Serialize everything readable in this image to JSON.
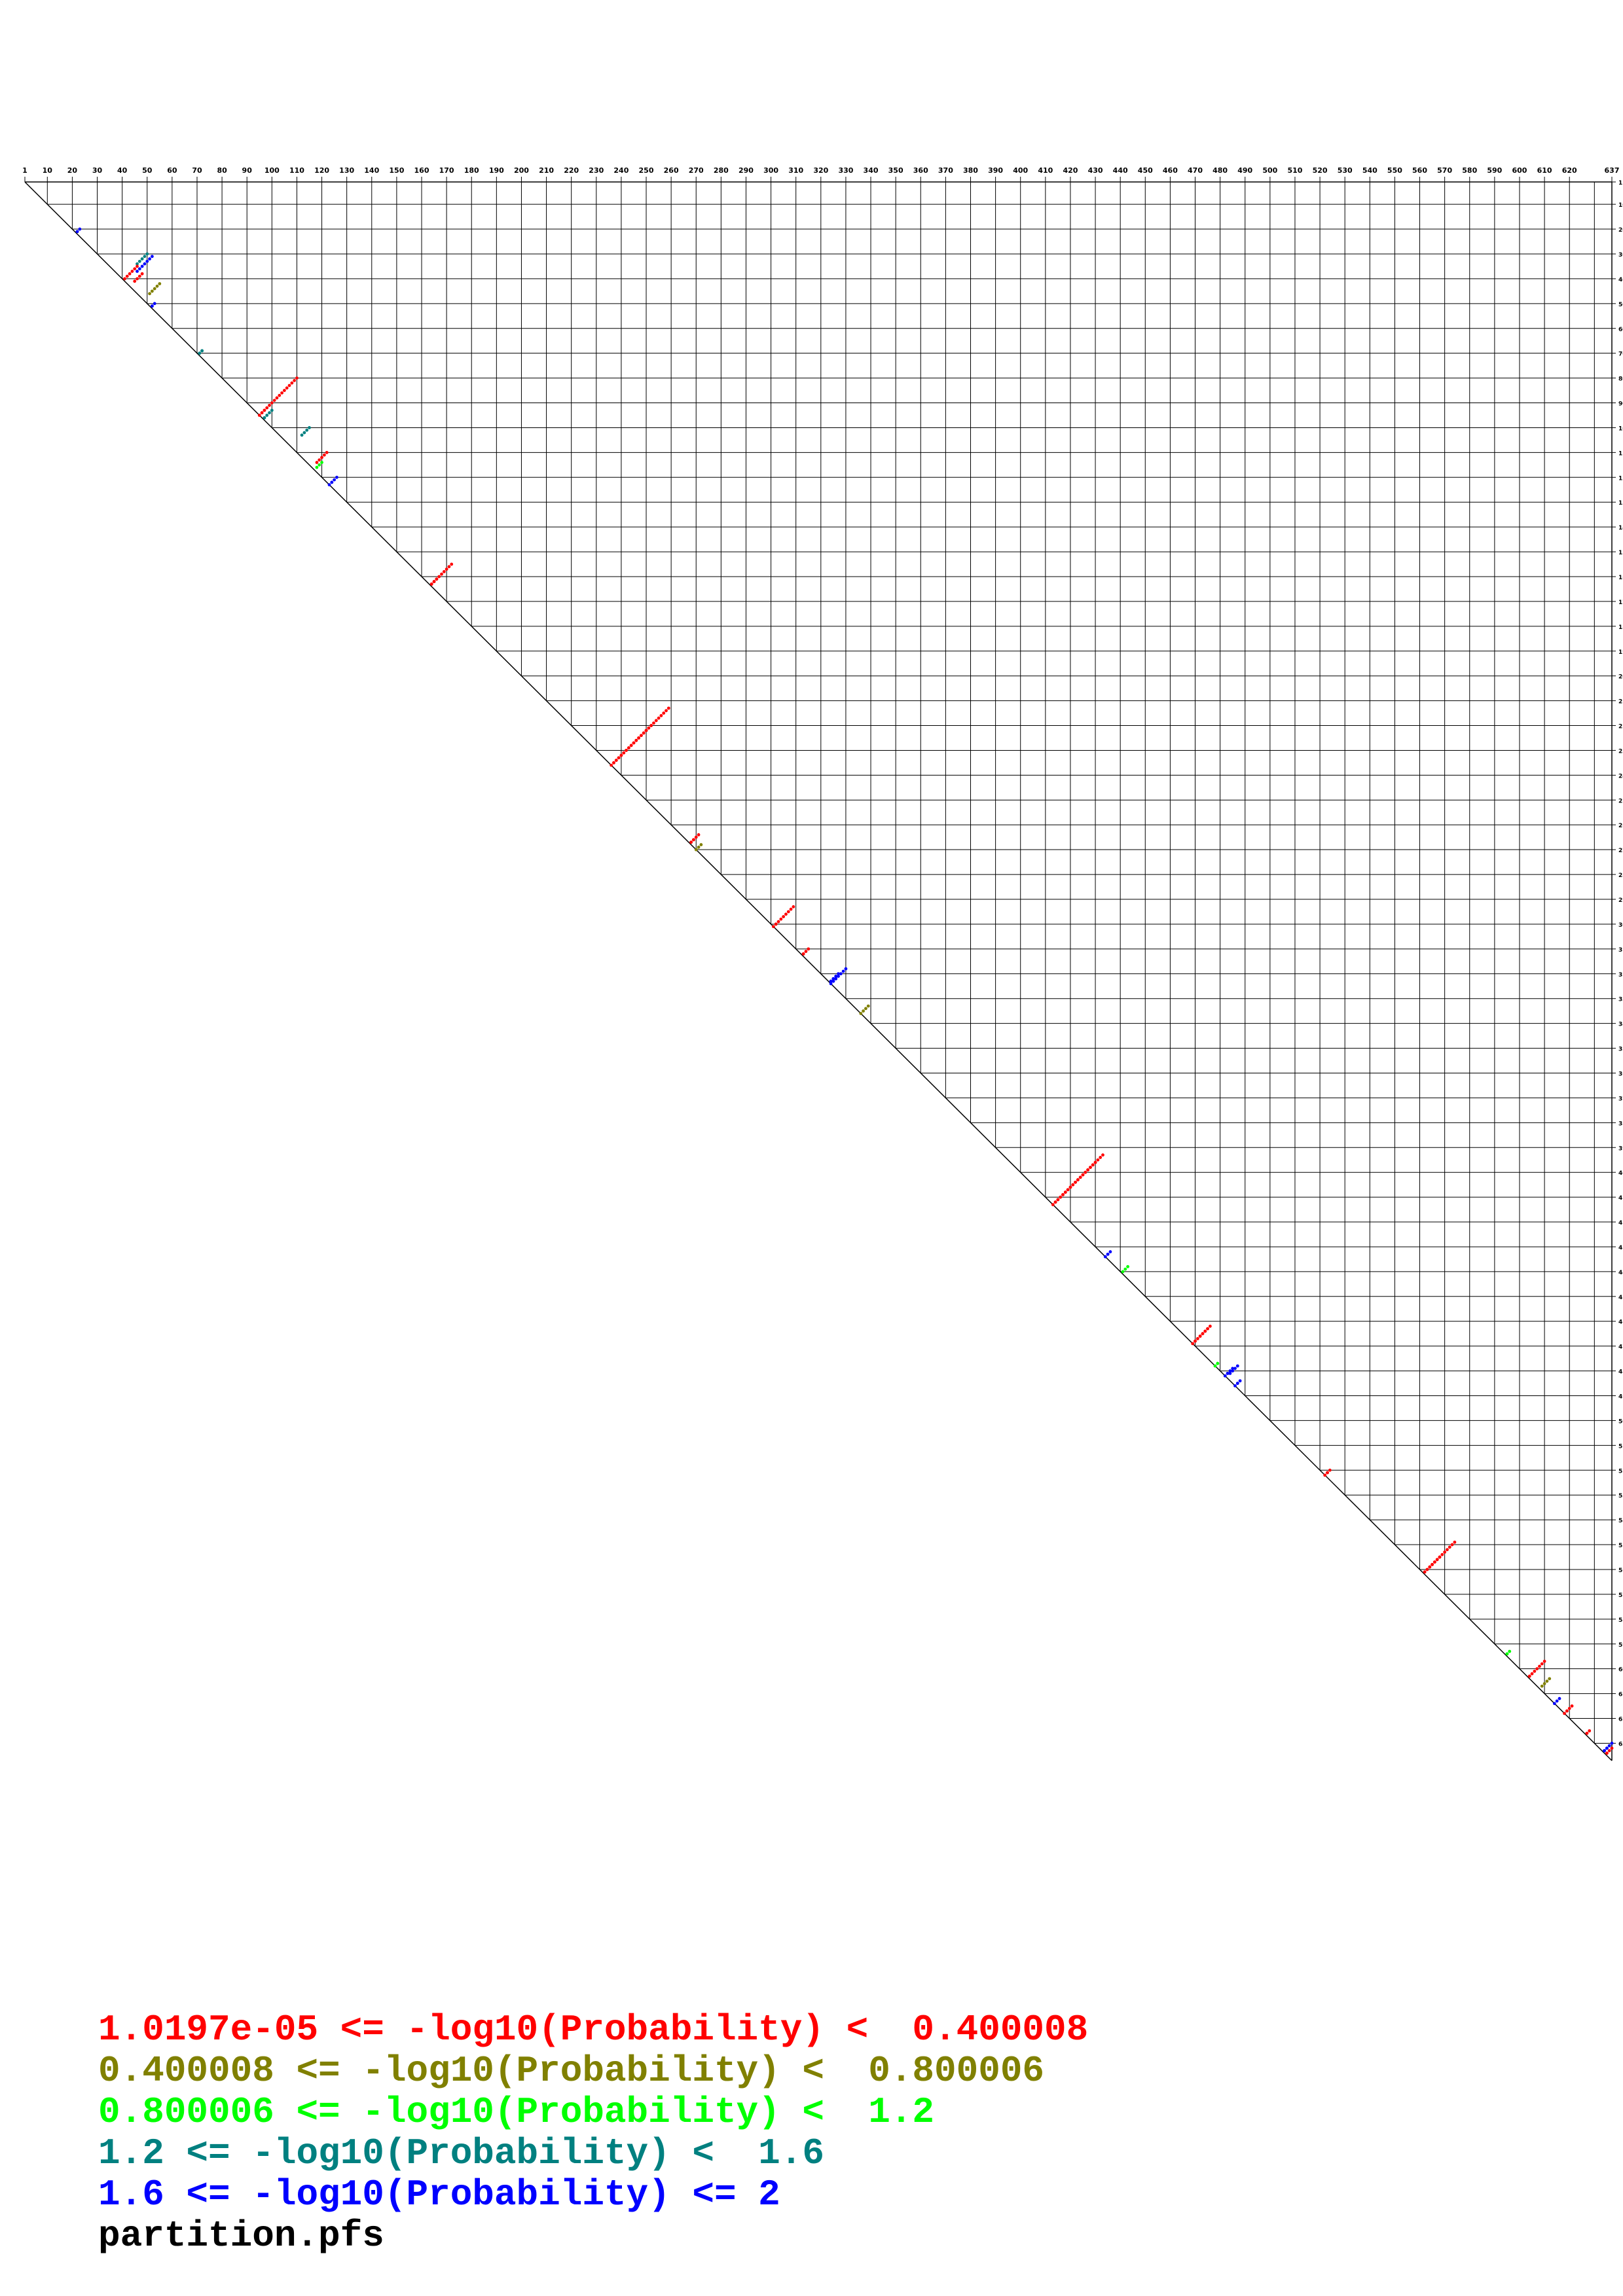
{
  "chart_data": {
    "type": "scatter",
    "title": "",
    "sequence_length": 637,
    "x_tick_labels": [
      1,
      10,
      20,
      30,
      40,
      50,
      60,
      70,
      80,
      90,
      100,
      110,
      120,
      130,
      140,
      150,
      160,
      170,
      180,
      190,
      200,
      210,
      220,
      230,
      240,
      250,
      260,
      270,
      280,
      290,
      300,
      310,
      320,
      330,
      340,
      350,
      360,
      370,
      380,
      390,
      400,
      410,
      420,
      430,
      440,
      450,
      460,
      470,
      480,
      490,
      500,
      510,
      520,
      530,
      540,
      550,
      560,
      570,
      580,
      590,
      600,
      610,
      620,
      637
    ],
    "y_range": [
      1,
      637
    ],
    "grid": true,
    "legend_placement": "bottom-left",
    "bins": [
      {
        "label": "1.0197e-05 <= -log10(Probability) <  0.400008",
        "color": "#ff0000"
      },
      {
        "label": "0.400008 <= -log10(Probability) <  0.800006",
        "color": "#808000"
      },
      {
        "label": "0.800006 <= -log10(Probability) <  1.2",
        "color": "#00ff00"
      },
      {
        "label": "1.2 <= -log10(Probability) <  1.6",
        "color": "#008080"
      },
      {
        "label": "1.6 <= -log10(Probability) <= 2",
        "color": "#0000ff"
      }
    ],
    "filename": "partition.pfs",
    "helices": [
      {
        "i": 21,
        "j": 22,
        "len": 3,
        "bin": 4
      },
      {
        "i": 31,
        "j": 52,
        "len": 7,
        "bin": 4
      },
      {
        "i": 30,
        "j": 50,
        "len": 5,
        "bin": 3
      },
      {
        "i": 38,
        "j": 48,
        "len": 4,
        "bin": 0
      },
      {
        "i": 42,
        "j": 55,
        "len": 5,
        "bin": 1
      },
      {
        "i": 35,
        "j": 46,
        "len": 6,
        "bin": 0
      },
      {
        "i": 110,
        "j": 122,
        "len": 5,
        "bin": 0
      },
      {
        "i": 114,
        "j": 120,
        "len": 3,
        "bin": 2
      },
      {
        "i": 51,
        "j": 52,
        "len": 3,
        "bin": 4
      },
      {
        "i": 69,
        "j": 72,
        "len": 4,
        "bin": 3
      },
      {
        "i": 93,
        "j": 100,
        "len": 5,
        "bin": 3
      },
      {
        "i": 100,
        "j": 115,
        "len": 4,
        "bin": 3
      },
      {
        "i": 80,
        "j": 110,
        "len": 18,
        "bin": 0
      },
      {
        "i": 120,
        "j": 126,
        "len": 5,
        "bin": 4
      },
      {
        "i": 155,
        "j": 172,
        "len": 12,
        "bin": 0
      },
      {
        "i": 318,
        "j": 330,
        "len": 9,
        "bin": 4
      },
      {
        "i": 479,
        "j": 485,
        "len": 5,
        "bin": 4
      },
      {
        "i": 478,
        "j": 487,
        "len": 4,
        "bin": 4
      },
      {
        "i": 632,
        "j": 635,
        "len": 5,
        "bin": 4
      },
      {
        "i": 630,
        "j": 637,
        "len": 4,
        "bin": 4
      },
      {
        "i": 632,
        "j": 637,
        "len": 4,
        "bin": 0
      },
      {
        "i": 310,
        "j": 315,
        "len": 4,
        "bin": 0
      },
      {
        "i": 220,
        "j": 252,
        "len": 40,
        "bin": 0
      },
      {
        "i": 264,
        "j": 271,
        "len": 6,
        "bin": 0
      },
      {
        "i": 268,
        "j": 272,
        "len": 3,
        "bin": 1
      },
      {
        "i": 293,
        "j": 309,
        "len": 10,
        "bin": 0
      },
      {
        "i": 320,
        "j": 327,
        "len": 6,
        "bin": 4
      },
      {
        "i": 336,
        "j": 336,
        "len": 4,
        "bin": 1
      },
      {
        "i": 393,
        "j": 433,
        "len": 38,
        "bin": 0
      },
      {
        "i": 432,
        "j": 436,
        "len": 4,
        "bin": 4
      },
      {
        "i": 484,
        "j": 488,
        "len": 4,
        "bin": 4
      },
      {
        "i": 477,
        "j": 479,
        "len": 3,
        "bin": 2
      },
      {
        "i": 441,
        "j": 440,
        "len": 3,
        "bin": 2
      },
      {
        "i": 462,
        "j": 476,
        "len": 14,
        "bin": 0
      },
      {
        "i": 520,
        "j": 524,
        "len": 4,
        "bin": 0
      },
      {
        "i": 549,
        "j": 574,
        "len": 20,
        "bin": 0
      },
      {
        "i": 617,
        "j": 619,
        "len": 5,
        "bin": 0
      },
      {
        "i": 625,
        "j": 628,
        "len": 3,
        "bin": 0
      },
      {
        "i": 612,
        "j": 616,
        "len": 3,
        "bin": 4
      },
      {
        "i": 597,
        "j": 610,
        "len": 8,
        "bin": 0
      },
      {
        "i": 593,
        "j": 596,
        "len": 3,
        "bin": 2
      },
      {
        "i": 604,
        "j": 612,
        "len": 4,
        "bin": 1
      }
    ]
  }
}
